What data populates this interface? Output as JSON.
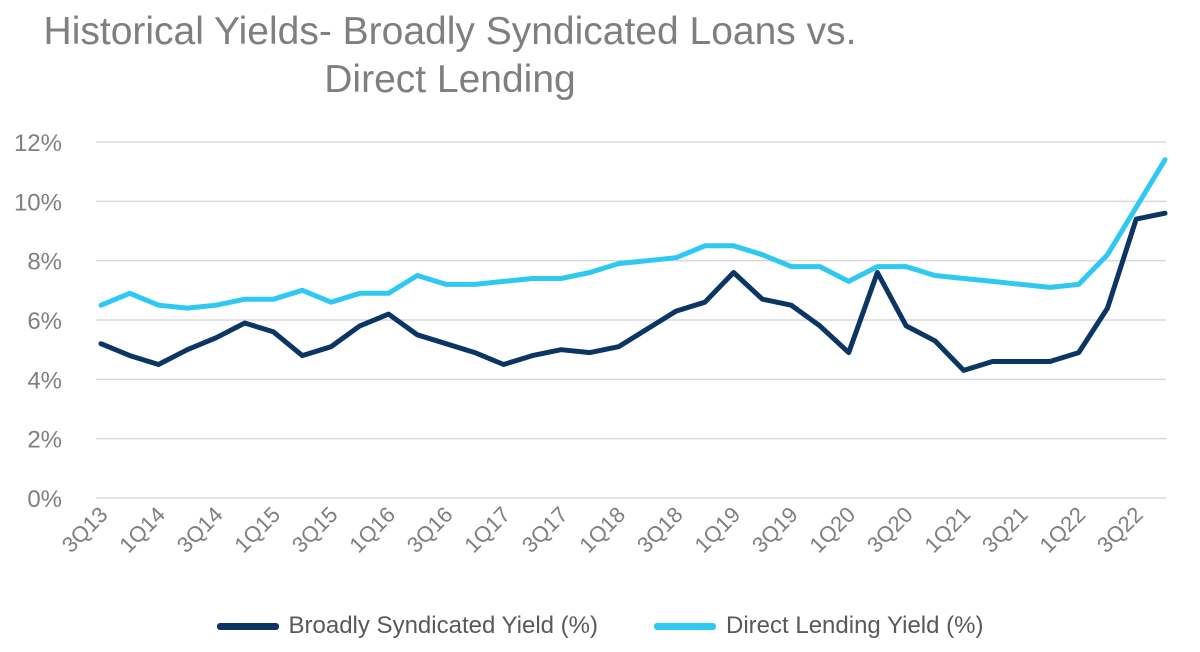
{
  "colors": {
    "broadly_syndicated": "#0b3563",
    "direct_lending": "#2ec8f2",
    "grid": "#d9d9d9",
    "text": "#7f7f7f"
  },
  "chart_data": {
    "type": "line",
    "title_lines": [
      "Historical Yields- Broadly Syndicated Loans vs.",
      "Direct Lending"
    ],
    "xlabel": "",
    "ylabel": "",
    "ylim": [
      0,
      12
    ],
    "y_ticks": [
      "0%",
      "2%",
      "4%",
      "6%",
      "8%",
      "10%",
      "12%"
    ],
    "y_tick_values": [
      0,
      2,
      4,
      6,
      8,
      10,
      12
    ],
    "grid": "horizontal",
    "legend_position": "bottom",
    "x": [
      "3Q13",
      "4Q13",
      "1Q14",
      "2Q14",
      "3Q14",
      "4Q14",
      "1Q15",
      "2Q15",
      "3Q15",
      "4Q15",
      "1Q16",
      "2Q16",
      "3Q16",
      "4Q16",
      "1Q17",
      "2Q17",
      "3Q17",
      "4Q17",
      "1Q18",
      "2Q18",
      "3Q18",
      "4Q18",
      "1Q19",
      "2Q19",
      "3Q19",
      "4Q19",
      "1Q20",
      "2Q20",
      "3Q20",
      "4Q20",
      "1Q21",
      "2Q21",
      "3Q21",
      "4Q21",
      "1Q22",
      "2Q22",
      "3Q22",
      "4Q22"
    ],
    "x_tick_labels": [
      "3Q13",
      "1Q14",
      "3Q14",
      "1Q15",
      "3Q15",
      "1Q16",
      "3Q16",
      "1Q17",
      "3Q17",
      "1Q18",
      "3Q18",
      "1Q19",
      "3Q19",
      "1Q20",
      "3Q20",
      "1Q21",
      "3Q21",
      "1Q22",
      "3Q22"
    ],
    "series": [
      {
        "name": "Broadly Syndicated Yield (%)",
        "color": "#0b3563",
        "values": [
          5.2,
          4.8,
          4.5,
          5.0,
          5.4,
          5.9,
          5.6,
          4.8,
          5.1,
          5.8,
          6.2,
          5.5,
          5.2,
          4.9,
          4.5,
          4.8,
          5.0,
          4.9,
          5.1,
          5.7,
          6.3,
          6.6,
          7.6,
          6.7,
          6.5,
          5.8,
          4.9,
          7.6,
          5.8,
          5.3,
          4.3,
          4.6,
          4.6,
          4.6,
          4.9,
          6.4,
          9.4,
          9.6
        ]
      },
      {
        "name": "Direct Lending Yield (%)",
        "color": "#2ec8f2",
        "values": [
          6.5,
          6.9,
          6.5,
          6.4,
          6.5,
          6.7,
          6.7,
          7.0,
          6.6,
          6.9,
          6.9,
          7.5,
          7.2,
          7.2,
          7.3,
          7.4,
          7.4,
          7.6,
          7.9,
          8.0,
          8.1,
          8.5,
          8.5,
          8.2,
          7.8,
          7.8,
          7.3,
          7.8,
          7.8,
          7.5,
          7.4,
          7.3,
          7.2,
          7.1,
          7.2,
          8.2,
          9.8,
          11.4
        ]
      }
    ]
  }
}
